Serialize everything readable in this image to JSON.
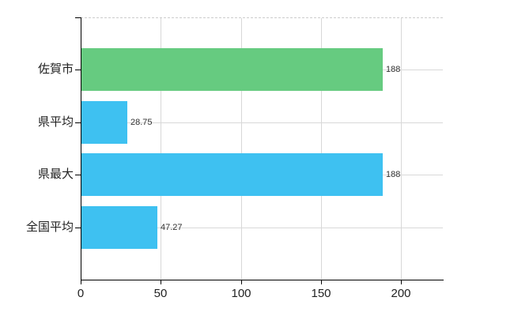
{
  "chart_data": {
    "type": "bar",
    "orientation": "horizontal",
    "title": "",
    "xlabel": "",
    "ylabel": "",
    "categories": [
      "佐賀市",
      "県平均",
      "県最大",
      "全国平均"
    ],
    "values": [
      188,
      28.75,
      188,
      47.27
    ],
    "value_labels": [
      "188",
      "28.75",
      "188",
      "47.27"
    ],
    "bar_colors": [
      "#66cb80",
      "#3ec1f1",
      "#3ec1f1",
      "#3ec1f1"
    ],
    "x_ticks": [
      0,
      50,
      100,
      150,
      200
    ],
    "x_tick_labels": [
      "0",
      "50",
      "100",
      "150",
      "200"
    ],
    "xlim": [
      0,
      226
    ],
    "grid": true,
    "legend": "none",
    "colors": {
      "bar_green": "#66cb80",
      "bar_blue": "#3ec1f1",
      "gridline": "#d8d8d8",
      "top_border_dashed": "#cccccc",
      "axis": "#000000",
      "category_text": "#222222",
      "value_text": "#333333"
    }
  }
}
